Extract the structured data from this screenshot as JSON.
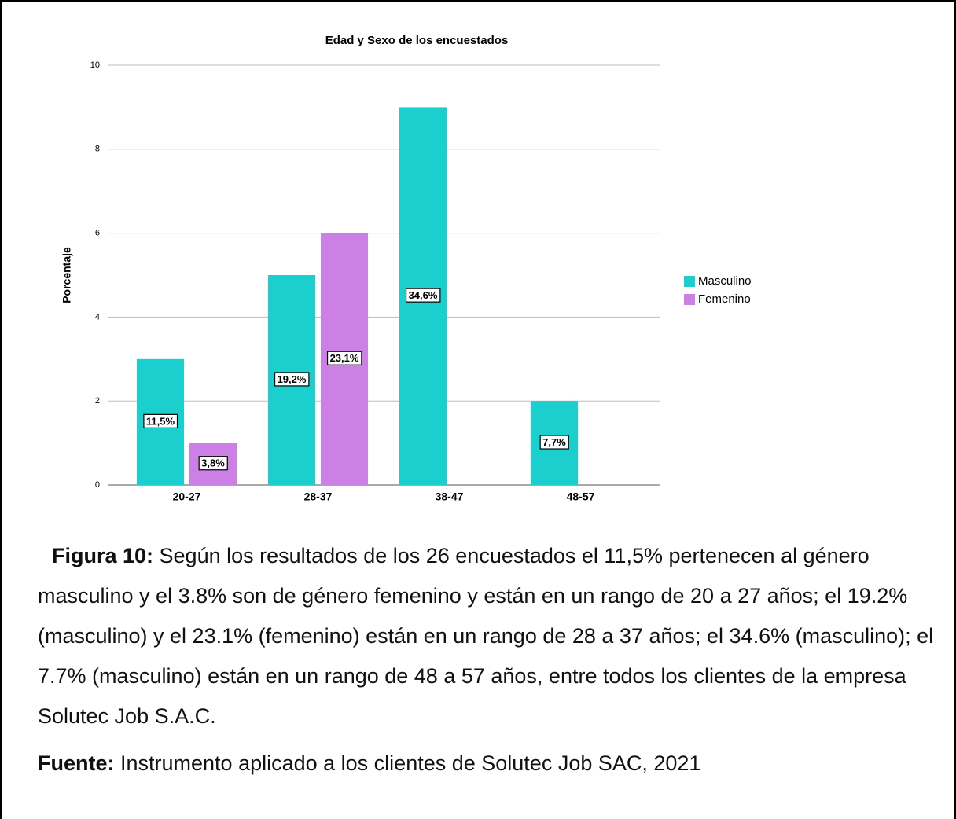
{
  "chart_data": {
    "type": "bar",
    "title": "Edad y Sexo de los encuestados",
    "y_label": "Porcentaje",
    "categories": [
      "20-27",
      "28-37",
      "38-47",
      "48-57"
    ],
    "series": [
      {
        "name": "Masculino",
        "color": "#1ccfcf",
        "values": [
          3,
          5,
          9,
          2
        ],
        "percent_labels": [
          "11,5%",
          "19,2%",
          "34,6%",
          "7,7%"
        ]
      },
      {
        "name": "Femenino",
        "color": "#cc80e6",
        "values": [
          1,
          6,
          0,
          0
        ],
        "percent_labels": [
          "3,8%",
          "23,1%",
          null,
          null
        ]
      }
    ],
    "ylim": [
      0,
      10
    ],
    "yticks": [
      0,
      2,
      4,
      6,
      8,
      10
    ],
    "grid": true,
    "legend": "right"
  },
  "caption": {
    "label": "Figura 10:",
    "text": " Según los resultados de los 26 encuestados el 11,5% pertenecen al género masculino y el 3.8% son de género femenino y están en un rango de 20 a 27 años; el 19.2% (masculino) y el 23.1% (femenino) están en un rango de 28 a 37 años; el 34.6% (masculino); el 7.7% (masculino) están en un rango de 48 a 57 años, entre todos los clientes de la empresa Solutec Job S.A.C."
  },
  "source": {
    "label": "Fuente:",
    "text": " Instrumento aplicado a los clientes de Solutec Job SAC, 2021"
  }
}
